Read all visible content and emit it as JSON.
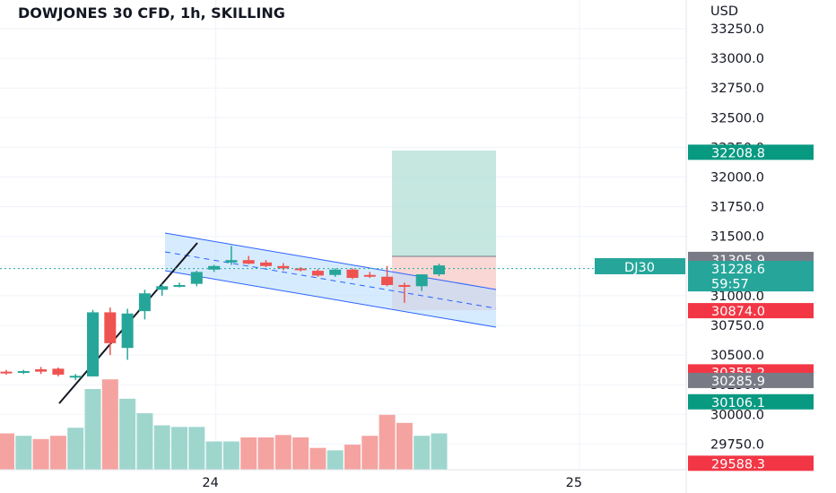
{
  "chart_data": {
    "type": "candlestick",
    "title": "DOWJONES 30 CFD, 1h, SKILLING",
    "currency": "USD",
    "symbol_badge": "DJ30",
    "countdown": "59:57",
    "y_axis": {
      "min": 29500,
      "max": 33250,
      "ticks": [
        "33250.0",
        "33000.0",
        "32750.0",
        "32500.0",
        "32250.0",
        "32000.0",
        "31750.0",
        "31500.0",
        "31250.0",
        "31000.0",
        "30750.0",
        "30500.0",
        "30250.0",
        "30000.0",
        "29750.0"
      ]
    },
    "x_axis": {
      "labels": [
        {
          "text": "24",
          "bar": 12
        },
        {
          "text": "25",
          "bar": 33
        }
      ]
    },
    "current_price": 31228.6,
    "price_badges": [
      {
        "value": 32208.8,
        "label": "32208.8",
        "color": "#089981"
      },
      {
        "value": 31305.9,
        "label": "31305.9",
        "color": "#787b86"
      },
      {
        "value": 31228.6,
        "label": "31228.6",
        "color": "#26a69a"
      },
      {
        "value": 30874.0,
        "label": "30874.0",
        "color": "#f23645"
      },
      {
        "value": 30358.2,
        "label": "30358.2",
        "color": "#f23645"
      },
      {
        "value": 30285.9,
        "label": "30285.9",
        "color": "#787b86"
      },
      {
        "value": 30106.1,
        "label": "30106.1",
        "color": "#089981"
      },
      {
        "value": 29588.3,
        "label": "29588.3",
        "color": "#f23645"
      }
    ],
    "colors": {
      "up": "#26a69a",
      "down": "#ef5350",
      "vol_up": "#9ed6ce",
      "vol_down": "#f5a3a1",
      "channel": "#2962ff",
      "profit_zone": "#b2dfd5",
      "loss_zone": "#f7c9c7"
    },
    "candles": [
      {
        "o": 30360,
        "h": 30375,
        "l": 30335,
        "c": 30350,
        "v": 0.45
      },
      {
        "o": 30360,
        "h": 30375,
        "l": 30340,
        "c": 30365,
        "v": 0.42
      },
      {
        "o": 30380,
        "h": 30400,
        "l": 30340,
        "c": 30360,
        "v": 0.38
      },
      {
        "o": 30385,
        "h": 30395,
        "l": 30320,
        "c": 30335,
        "v": 0.42
      },
      {
        "o": 30320,
        "h": 30340,
        "l": 30290,
        "c": 30325,
        "v": 0.52
      },
      {
        "o": 30320,
        "h": 30880,
        "l": 30320,
        "c": 30860,
        "v": 1.0
      },
      {
        "o": 30860,
        "h": 30900,
        "l": 30500,
        "c": 30600,
        "v": 1.12
      },
      {
        "o": 30560,
        "h": 30890,
        "l": 30460,
        "c": 30850,
        "v": 0.88
      },
      {
        "o": 30870,
        "h": 31050,
        "l": 30800,
        "c": 31020,
        "v": 0.7
      },
      {
        "o": 31050,
        "h": 31100,
        "l": 31000,
        "c": 31080,
        "v": 0.55
      },
      {
        "o": 31080,
        "h": 31110,
        "l": 31070,
        "c": 31090,
        "v": 0.53
      },
      {
        "o": 31100,
        "h": 31210,
        "l": 31080,
        "c": 31200,
        "v": 0.53
      },
      {
        "o": 31220,
        "h": 31260,
        "l": 31200,
        "c": 31250,
        "v": 0.35
      },
      {
        "o": 31280,
        "h": 31420,
        "l": 31260,
        "c": 31300,
        "v": 0.35
      },
      {
        "o": 31300,
        "h": 31335,
        "l": 31265,
        "c": 31270,
        "v": 0.4
      },
      {
        "o": 31280,
        "h": 31300,
        "l": 31240,
        "c": 31250,
        "v": 0.4
      },
      {
        "o": 31250,
        "h": 31275,
        "l": 31215,
        "c": 31230,
        "v": 0.43
      },
      {
        "o": 31230,
        "h": 31240,
        "l": 31205,
        "c": 31220,
        "v": 0.4
      },
      {
        "o": 31210,
        "h": 31225,
        "l": 31160,
        "c": 31170,
        "v": 0.27
      },
      {
        "o": 31175,
        "h": 31230,
        "l": 31160,
        "c": 31220,
        "v": 0.24
      },
      {
        "o": 31220,
        "h": 31230,
        "l": 31140,
        "c": 31150,
        "v": 0.31
      },
      {
        "o": 31175,
        "h": 31200,
        "l": 31150,
        "c": 31165,
        "v": 0.42
      },
      {
        "o": 31160,
        "h": 31250,
        "l": 31080,
        "c": 31090,
        "v": 0.68
      },
      {
        "o": 31090,
        "h": 31110,
        "l": 30940,
        "c": 31080,
        "v": 0.58
      },
      {
        "o": 31080,
        "h": 31180,
        "l": 31040,
        "c": 31180,
        "v": 0.42
      },
      {
        "o": 31180,
        "h": 31270,
        "l": 31165,
        "c": 31255,
        "v": 0.45
      }
    ]
  }
}
